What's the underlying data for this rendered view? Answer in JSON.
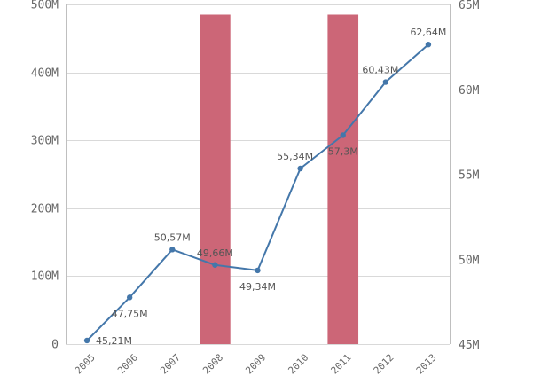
{
  "chart_data": {
    "type": "bar",
    "categories": [
      "2005",
      "2006",
      "2007",
      "2008",
      "2009",
      "2010",
      "2011",
      "2012",
      "2013"
    ],
    "series": [
      {
        "kind": "bar",
        "axis": "left",
        "color": "#cc6677",
        "values": [
          null,
          null,
          null,
          485000000,
          null,
          null,
          485000000,
          null,
          null
        ]
      },
      {
        "kind": "line",
        "axis": "right",
        "color": "#4477aa",
        "values": [
          45.21,
          47.75,
          50.57,
          49.66,
          49.34,
          55.34,
          57.3,
          60.43,
          62.64
        ],
        "labels": [
          "45,21M",
          "47,75M",
          "50,57M",
          "49,66M",
          "49,34M",
          "55,34M",
          "57,3M",
          "60,43M",
          "62,64M"
        ]
      }
    ],
    "y_left": {
      "ylim": [
        0,
        500000000
      ],
      "ticks": [
        0,
        100000000,
        200000000,
        300000000,
        400000000,
        500000000
      ],
      "tick_labels": [
        "0",
        "100M",
        "200M",
        "300M",
        "400M",
        "500M"
      ]
    },
    "y_right": {
      "ylim": [
        45,
        65
      ],
      "ticks": [
        45,
        50,
        55,
        60,
        65
      ],
      "tick_labels": [
        "45M",
        "50M",
        "55M",
        "60M",
        "65M"
      ]
    },
    "grid": true,
    "legend": "none",
    "title": "",
    "xlabel": "",
    "ylabel": ""
  }
}
